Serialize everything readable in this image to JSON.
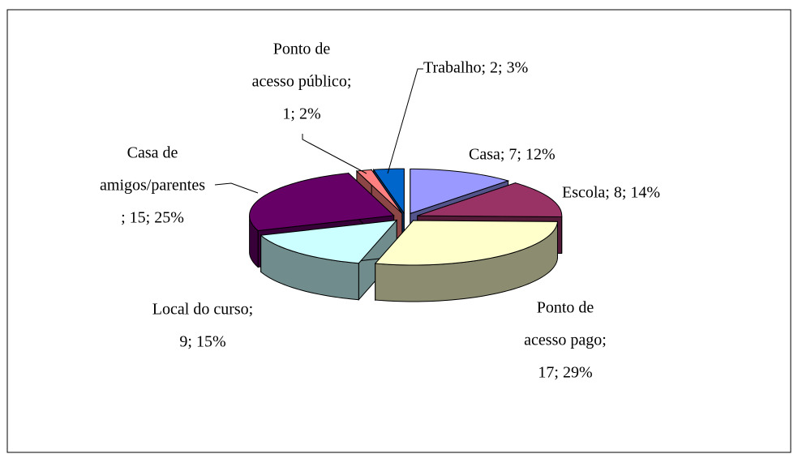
{
  "chart_data": {
    "type": "pie",
    "values": [
      7,
      8,
      17,
      9,
      15,
      1,
      2
    ],
    "value_labels": [
      [
        "Casa; 7; 12%"
      ],
      [
        "Escola; 8; 14%"
      ],
      [
        "Ponto de",
        "acesso pago;",
        "17; 29%"
      ],
      [
        "Local do curso;",
        "9; 15%"
      ],
      [
        "Casa de",
        "amigos/parentes",
        "; 15; 25%"
      ],
      [
        "Ponto de",
        "acesso público;",
        "1; 2%"
      ],
      [
        "Trabalho; 2; 3%"
      ]
    ],
    "colors": [
      "#9999ff",
      "#993366",
      "#ffffcc",
      "#ccffff",
      "#660066",
      "#ff8080",
      "#0066cc"
    ]
  }
}
